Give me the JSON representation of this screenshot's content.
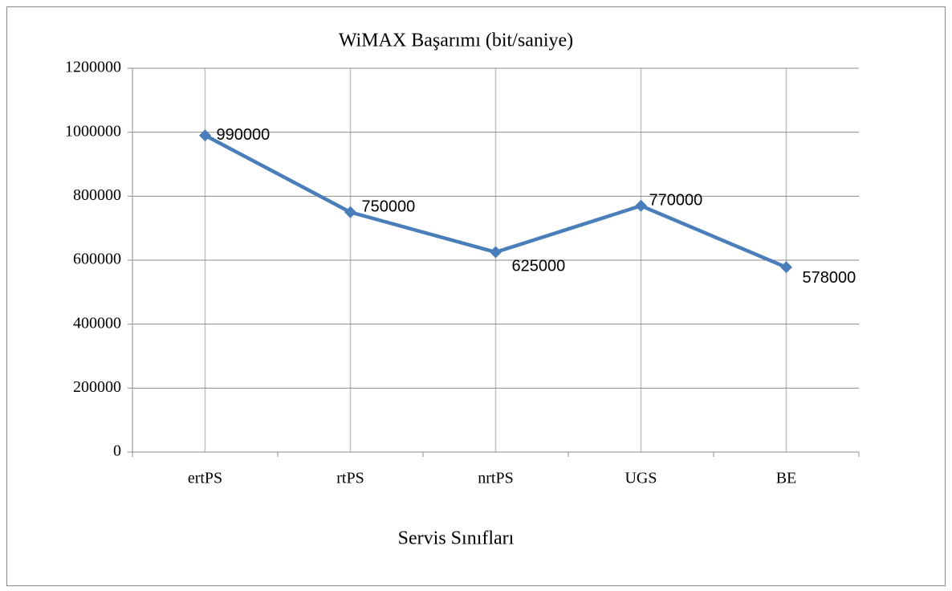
{
  "chart_data": {
    "type": "line",
    "title": "WiMAX Başarımı (bit/saniye)",
    "x_label": "Servis Sınıfları",
    "categories": [
      "ertPS",
      "rtPS",
      "nrtPS",
      "UGS",
      "BE"
    ],
    "values": [
      990000,
      750000,
      625000,
      770000,
      578000
    ],
    "color": "#4a7ebb",
    "ylim": [
      0,
      1200000
    ],
    "yticks": [
      0,
      200000,
      400000,
      600000,
      800000,
      1000000,
      1200000
    ],
    "grid": true
  }
}
